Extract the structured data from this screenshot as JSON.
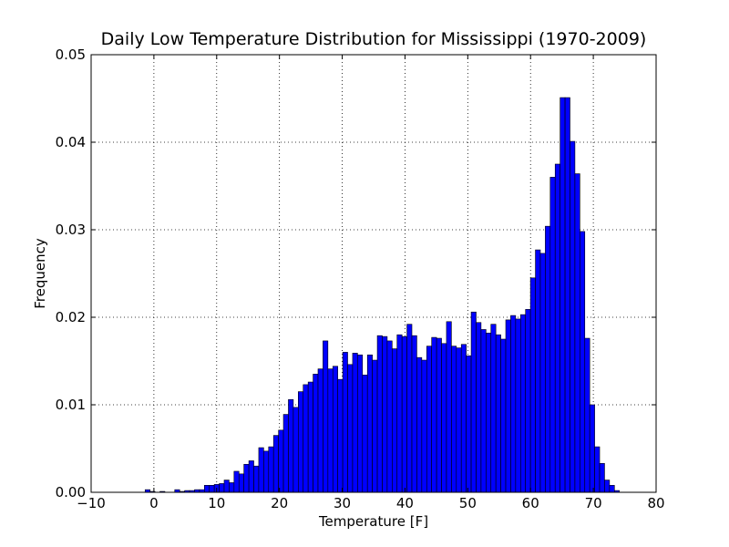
{
  "chart_data": {
    "type": "bar",
    "title": "Daily Low Temperature Distribution for Mississippi (1970-2009)",
    "xlabel": "Temperature [F]",
    "ylabel": "Frequency",
    "xlim": [
      -10,
      80
    ],
    "ylim": [
      0,
      0.05
    ],
    "x_ticks": [
      -10,
      0,
      10,
      20,
      30,
      40,
      50,
      60,
      70,
      80
    ],
    "x_tick_labels": [
      "−10",
      "0",
      "10",
      "20",
      "30",
      "40",
      "50",
      "60",
      "70",
      "80"
    ],
    "y_ticks": [
      0.0,
      0.01,
      0.02,
      0.03,
      0.04,
      0.05
    ],
    "y_tick_labels": [
      "0.00",
      "0.01",
      "0.02",
      "0.03",
      "0.04",
      "0.05"
    ],
    "grid": true,
    "bar_color": "#0000ff",
    "bin_start": -1.4,
    "bin_width": 0.787,
    "values": [
      0.0003,
      0.0001,
      0.0,
      0.0001,
      0.0,
      0.0,
      0.0003,
      0.0001,
      0.0002,
      0.0002,
      0.0003,
      0.0003,
      0.0008,
      0.0008,
      0.0009,
      0.001,
      0.0014,
      0.0011,
      0.0024,
      0.0021,
      0.0032,
      0.0036,
      0.003,
      0.0051,
      0.0047,
      0.0052,
      0.0065,
      0.0071,
      0.0089,
      0.0106,
      0.0097,
      0.0115,
      0.0123,
      0.0126,
      0.0135,
      0.0141,
      0.0173,
      0.0141,
      0.0144,
      0.0129,
      0.016,
      0.0146,
      0.0159,
      0.0157,
      0.0134,
      0.0157,
      0.0151,
      0.0179,
      0.0178,
      0.0173,
      0.0164,
      0.018,
      0.0178,
      0.0192,
      0.0179,
      0.0154,
      0.0151,
      0.0167,
      0.0177,
      0.0176,
      0.017,
      0.0195,
      0.0167,
      0.0165,
      0.0169,
      0.0156,
      0.0206,
      0.0194,
      0.0186,
      0.0182,
      0.0192,
      0.018,
      0.0175,
      0.0197,
      0.0202,
      0.0198,
      0.0203,
      0.0209,
      0.0245,
      0.0277,
      0.0273,
      0.0304,
      0.036,
      0.0375,
      0.0451,
      0.0451,
      0.0401,
      0.0364,
      0.0298,
      0.0176,
      0.01,
      0.0052,
      0.0033,
      0.0014,
      0.0008,
      0.0002
    ]
  }
}
